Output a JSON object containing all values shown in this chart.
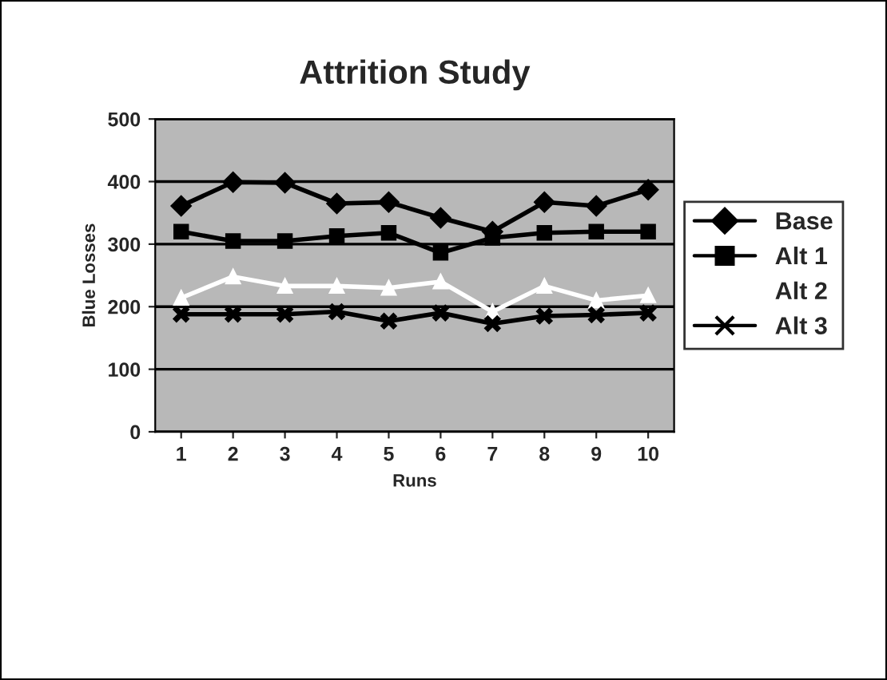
{
  "chart_data": {
    "type": "line",
    "title": "Attrition Study",
    "xlabel": "Runs",
    "ylabel": "Blue Losses",
    "categories": [
      "1",
      "2",
      "3",
      "4",
      "5",
      "6",
      "7",
      "8",
      "9",
      "10"
    ],
    "series": [
      {
        "name": "Base",
        "color": "#000000",
        "marker": "diamond",
        "values": [
          361,
          399,
          398,
          365,
          367,
          342,
          320,
          367,
          361,
          387
        ]
      },
      {
        "name": "Alt 1",
        "color": "#000000",
        "marker": "square",
        "values": [
          320,
          305,
          305,
          313,
          318,
          286,
          310,
          318,
          320,
          320
        ]
      },
      {
        "name": "Alt 2",
        "color": "#ffffff",
        "marker": "triangle",
        "values": [
          214,
          248,
          233,
          233,
          230,
          240,
          192,
          233,
          210,
          218
        ]
      },
      {
        "name": "Alt 3",
        "color": "#000000",
        "marker": "cross",
        "values": [
          188,
          188,
          188,
          192,
          177,
          190,
          173,
          185,
          187,
          190
        ]
      }
    ],
    "ylim": [
      0,
      500
    ],
    "yticks": [
      0,
      100,
      200,
      300,
      400,
      500
    ],
    "grid": "y",
    "legend": "right"
  }
}
